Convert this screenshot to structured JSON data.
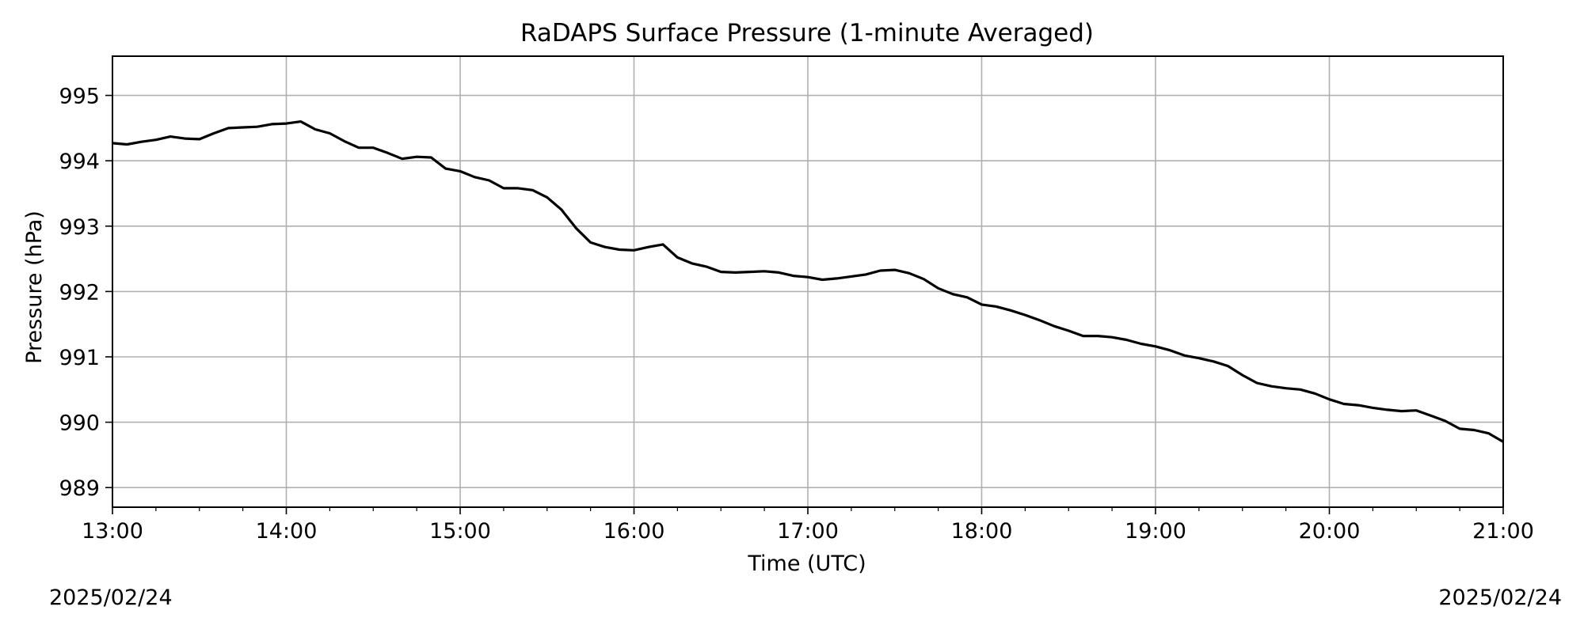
{
  "chart_data": {
    "type": "line",
    "title": "RaDAPS Surface Pressure (1-minute Averaged)",
    "xlabel": "Time (UTC)",
    "ylabel": "Pressure (hPa)",
    "x_ticks": [
      "13:00",
      "14:00",
      "15:00",
      "16:00",
      "17:00",
      "18:00",
      "19:00",
      "20:00",
      "21:00"
    ],
    "y_ticks": [
      989,
      990,
      991,
      992,
      993,
      994,
      995
    ],
    "xlim": [
      "13:00",
      "21:00"
    ],
    "ylim": [
      988.7,
      995.6
    ],
    "grid": true,
    "line_color": "#000000",
    "x_unit": "time (UTC, HH:MM)",
    "series": [
      {
        "x": [
          "13:00",
          "13:05",
          "13:10",
          "13:15",
          "13:20",
          "13:25",
          "13:30",
          "13:35",
          "13:40",
          "13:45",
          "13:50",
          "13:55",
          "14:00",
          "14:05",
          "14:10",
          "14:15",
          "14:20",
          "14:25",
          "14:30",
          "14:35",
          "14:40",
          "14:45",
          "14:50",
          "14:55",
          "15:00",
          "15:05",
          "15:10",
          "15:15",
          "15:20",
          "15:25",
          "15:30",
          "15:35",
          "15:40",
          "15:45",
          "15:50",
          "15:55",
          "16:00",
          "16:05",
          "16:10",
          "16:15",
          "16:20",
          "16:25",
          "16:30",
          "16:35",
          "16:40",
          "16:45",
          "16:50",
          "16:55",
          "17:00",
          "17:05",
          "17:10",
          "17:15",
          "17:20",
          "17:25",
          "17:30",
          "17:35",
          "17:40",
          "17:45",
          "17:50",
          "17:55",
          "18:00",
          "18:05",
          "18:10",
          "18:15",
          "18:20",
          "18:25",
          "18:30",
          "18:35",
          "18:40",
          "18:45",
          "18:50",
          "18:55",
          "19:00",
          "19:05",
          "19:10",
          "19:15",
          "19:20",
          "19:25",
          "19:30",
          "19:35",
          "19:40",
          "19:45",
          "19:50",
          "19:55",
          "20:00",
          "20:05",
          "20:10",
          "20:15",
          "20:20",
          "20:25",
          "20:30",
          "20:35",
          "20:40",
          "20:45",
          "20:50",
          "20:55",
          "21:00"
        ],
        "values": [
          994.27,
          994.25,
          994.29,
          994.32,
          994.37,
          994.34,
          994.33,
          994.42,
          994.5,
          994.51,
          994.52,
          994.56,
          994.57,
          994.6,
          994.48,
          994.42,
          994.3,
          994.2,
          994.2,
          994.12,
          994.03,
          994.06,
          994.05,
          993.88,
          993.84,
          993.75,
          993.7,
          993.58,
          993.58,
          993.55,
          993.44,
          993.25,
          992.97,
          992.75,
          992.68,
          992.64,
          992.63,
          992.68,
          992.72,
          992.52,
          992.43,
          992.38,
          992.3,
          992.29,
          992.3,
          992.31,
          992.29,
          992.24,
          992.22,
          992.18,
          992.2,
          992.23,
          992.26,
          992.32,
          992.33,
          992.28,
          992.19,
          992.05,
          991.96,
          991.91,
          991.8,
          991.77,
          991.71,
          991.64,
          991.56,
          991.47,
          991.4,
          991.32,
          991.32,
          991.3,
          991.26,
          991.2,
          991.16,
          991.1,
          991.02,
          990.98,
          990.93,
          990.86,
          990.72,
          990.6,
          990.55,
          990.52,
          990.5,
          990.44,
          990.35,
          990.28,
          990.26,
          990.22,
          990.19,
          990.17,
          990.18,
          990.1,
          990.02,
          989.9,
          989.88,
          989.83,
          989.7
        ]
      }
    ]
  },
  "date_left": "2025/02/24",
  "date_right": "2025/02/24"
}
